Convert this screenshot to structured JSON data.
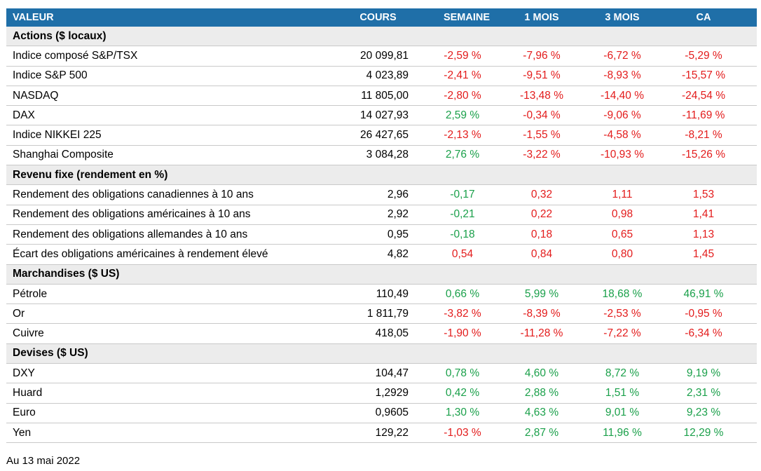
{
  "header": {
    "name": "VALEUR",
    "price": "COURS",
    "week": "SEMAINE",
    "month1": "1 MOIS",
    "month3": "3 MOIS",
    "ytd": "CA"
  },
  "colors": {
    "header_bg": "#1f6fa8",
    "section_bg": "#ececec",
    "negative": "#e31b1b",
    "positive": "#1aa04a"
  },
  "sections": [
    {
      "title": "Actions ($ locaux)",
      "rows": [
        {
          "name": "Indice composé S&P/TSX",
          "price": "20 099,81",
          "week": "-2,59 %",
          "month1": "-7,96 %",
          "month3": "-6,72 %",
          "ytd": "-5,29 %",
          "colors": [
            "neg",
            "neg",
            "neg",
            "neg"
          ]
        },
        {
          "name": "Indice S&P 500",
          "price": "4 023,89",
          "week": "-2,41 %",
          "month1": "-9,51 %",
          "month3": "-8,93 %",
          "ytd": "-15,57 %",
          "colors": [
            "neg",
            "neg",
            "neg",
            "neg"
          ]
        },
        {
          "name": "NASDAQ",
          "price": "11 805,00",
          "week": "-2,80 %",
          "month1": "-13,48 %",
          "month3": "-14,40 %",
          "ytd": "-24,54 %",
          "colors": [
            "neg",
            "neg",
            "neg",
            "neg"
          ]
        },
        {
          "name": "DAX",
          "price": "14 027,93",
          "week": "2,59 %",
          "month1": "-0,34 %",
          "month3": "-9,06 %",
          "ytd": "-11,69 %",
          "colors": [
            "pos",
            "neg",
            "neg",
            "neg"
          ]
        },
        {
          "name": "Indice NIKKEI 225",
          "price": "26 427,65",
          "week": "-2,13 %",
          "month1": "-1,55 %",
          "month3": "-4,58 %",
          "ytd": "-8,21 %",
          "colors": [
            "neg",
            "neg",
            "neg",
            "neg"
          ]
        },
        {
          "name": "Shanghai Composite",
          "price": "3 084,28",
          "week": "2,76 %",
          "month1": "-3,22 %",
          "month3": "-10,93 %",
          "ytd": "-15,26 %",
          "colors": [
            "pos",
            "neg",
            "neg",
            "neg"
          ]
        }
      ]
    },
    {
      "title": "Revenu fixe (rendement en %)",
      "rows": [
        {
          "name": "Rendement des obligations canadiennes à 10 ans",
          "price": "2,96",
          "week": "-0,17",
          "month1": "0,32",
          "month3": "1,11",
          "ytd": "1,53",
          "colors": [
            "pos",
            "neg",
            "neg",
            "neg"
          ]
        },
        {
          "name": "Rendement des obligations américaines à 10 ans",
          "price": "2,92",
          "week": "-0,21",
          "month1": "0,22",
          "month3": "0,98",
          "ytd": "1,41",
          "colors": [
            "pos",
            "neg",
            "neg",
            "neg"
          ]
        },
        {
          "name": "Rendement des obligations allemandes à 10 ans",
          "price": "0,95",
          "week": "-0,18",
          "month1": "0,18",
          "month3": "0,65",
          "ytd": "1,13",
          "colors": [
            "pos",
            "neg",
            "neg",
            "neg"
          ]
        },
        {
          "name": "Écart des obligations américaines à rendement élevé",
          "price": "4,82",
          "week": "0,54",
          "month1": "0,84",
          "month3": "0,80",
          "ytd": "1,45",
          "colors": [
            "neg",
            "neg",
            "neg",
            "neg"
          ]
        }
      ]
    },
    {
      "title": "Marchandises ($ US)",
      "rows": [
        {
          "name": "Pétrole",
          "price": "110,49",
          "week": "0,66 %",
          "month1": "5,99 %",
          "month3": "18,68 %",
          "ytd": "46,91 %",
          "colors": [
            "pos",
            "pos",
            "pos",
            "pos"
          ]
        },
        {
          "name": "Or",
          "price": "1 811,79",
          "week": "-3,82 %",
          "month1": "-8,39 %",
          "month3": "-2,53 %",
          "ytd": "-0,95 %",
          "colors": [
            "neg",
            "neg",
            "neg",
            "neg"
          ]
        },
        {
          "name": "Cuivre",
          "price": "418,05",
          "week": "-1,90 %",
          "month1": "-11,28 %",
          "month3": "-7,22 %",
          "ytd": "-6,34 %",
          "colors": [
            "neg",
            "neg",
            "neg",
            "neg"
          ]
        }
      ]
    },
    {
      "title": "Devises ($ US)",
      "rows": [
        {
          "name": "DXY",
          "price": "104,47",
          "week": "0,78 %",
          "month1": "4,60 %",
          "month3": "8,72 %",
          "ytd": "9,19 %",
          "colors": [
            "pos",
            "pos",
            "pos",
            "pos"
          ]
        },
        {
          "name": "Huard",
          "price": "1,2929",
          "week": "0,42 %",
          "month1": "2,88 %",
          "month3": "1,51 %",
          "ytd": "2,31 %",
          "colors": [
            "pos",
            "pos",
            "pos",
            "pos"
          ]
        },
        {
          "name": "Euro",
          "price": "0,9605",
          "week": "1,30 %",
          "month1": "4,63 %",
          "month3": "9,01 %",
          "ytd": "9,23 %",
          "colors": [
            "pos",
            "pos",
            "pos",
            "pos"
          ]
        },
        {
          "name": "Yen",
          "price": "129,22",
          "week": "-1,03 %",
          "month1": "2,87 %",
          "month3": "11,96 %",
          "ytd": "12,29 %",
          "colors": [
            "neg",
            "pos",
            "pos",
            "pos"
          ]
        }
      ]
    }
  ],
  "footnote": "Au 13 mai 2022"
}
